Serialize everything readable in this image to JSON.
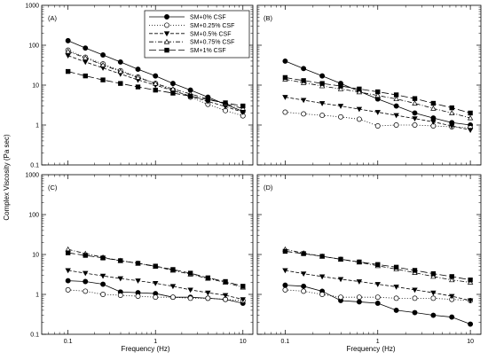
{
  "chart_data": {
    "type": "line",
    "xlabel": "Frequency (Hz)",
    "ylabel": "Complex Viscosity (Pa sec)",
    "x_scale": "log",
    "y_scale": "log",
    "xlim": [
      0.05,
      13
    ],
    "ylim": [
      0.1,
      1000
    ],
    "x_ticks": [
      {
        "value": 0.1,
        "label": "0.1"
      },
      {
        "value": 1,
        "label": "1"
      },
      {
        "value": 10,
        "label": "10"
      }
    ],
    "y_ticks": [
      {
        "value": 0.1,
        "label": "0.1"
      },
      {
        "value": 1,
        "label": "1"
      },
      {
        "value": 10,
        "label": "10"
      },
      {
        "value": 100,
        "label": "100"
      },
      {
        "value": 1000,
        "label": "1000"
      }
    ],
    "x": [
      0.1,
      0.158,
      0.251,
      0.398,
      0.631,
      1.0,
      1.585,
      2.512,
      3.981,
      6.31,
      10.0
    ],
    "legend": {
      "placement": "top-right of panel A",
      "entries": [
        {
          "label": "SM+0% CSF",
          "marker": "filled-circle",
          "dash": "solid"
        },
        {
          "label": "SM+0.25% CSF",
          "marker": "open-circle",
          "dash": "dotted"
        },
        {
          "label": "SM+0.5% CSF",
          "marker": "filled-triangle-down",
          "dash": "dashed"
        },
        {
          "label": "SM+0.75% CSF",
          "marker": "open-triangle-up",
          "dash": "dash-dot"
        },
        {
          "label": "SM+1% CSF",
          "marker": "filled-square",
          "dash": "long-dash"
        }
      ]
    },
    "panels": [
      {
        "label": "(A)",
        "series": [
          {
            "name": "SM+0% CSF",
            "values": [
              130,
              85,
              57,
              38,
              25,
              17,
              11,
              7.5,
              5,
              3.3,
              2.2
            ]
          },
          {
            "name": "SM+0.25% CSF",
            "values": [
              75,
              50,
              34,
              23,
              16,
              11,
              7.5,
              5,
              3.3,
              2.3,
              1.7
            ]
          },
          {
            "name": "SM+0.5% CSF",
            "values": [
              55,
              38,
              27,
              19,
              13.5,
              10,
              7.3,
              5.3,
              3.9,
              2.9,
              2.1
            ]
          },
          {
            "name": "SM+0.75% CSF",
            "values": [
              70,
              48,
              32,
              22,
              15.5,
              11,
              8,
              6,
              4.5,
              3.4,
              2.6
            ]
          },
          {
            "name": "SM+1% CSF",
            "values": [
              22,
              17,
              13.5,
              11,
              9,
              7.5,
              6.3,
              5.3,
              4.3,
              3.6,
              3
            ]
          }
        ]
      },
      {
        "label": "(B)",
        "series": [
          {
            "name": "SM+0% CSF",
            "values": [
              40,
              26,
              17,
              11,
              7,
              4.5,
              3,
              2,
              1.5,
              1.15,
              1
            ]
          },
          {
            "name": "SM+0.25% CSF",
            "values": [
              2.1,
              1.9,
              1.75,
              1.6,
              1.4,
              0.95,
              1,
              1,
              0.95,
              0.9,
              0.85
            ]
          },
          {
            "name": "SM+0.5% CSF",
            "values": [
              5,
              4.2,
              3.5,
              3,
              2.5,
              2.1,
              1.75,
              1.45,
              1.2,
              0.95,
              0.75
            ]
          },
          {
            "name": "SM+0.75% CSF",
            "values": [
              14,
              11.5,
              9.5,
              8,
              6.7,
              5.5,
              4.5,
              3.5,
              2.6,
              2,
              1.5
            ]
          },
          {
            "name": "SM+1% CSF",
            "values": [
              15.5,
              13,
              11,
              9.5,
              8,
              6.8,
              5.7,
              4.6,
              3.5,
              2.7,
              2
            ]
          }
        ]
      },
      {
        "label": "(C)",
        "series": [
          {
            "name": "SM+0% CSF",
            "values": [
              2.2,
              2.1,
              1.8,
              1.15,
              1.1,
              1.05,
              0.85,
              0.85,
              0.8,
              0.75,
              0.6
            ]
          },
          {
            "name": "SM+0.25% CSF",
            "values": [
              1.3,
              1.2,
              1,
              0.95,
              0.9,
              0.85,
              0.85,
              0.8,
              0.8,
              0.75,
              0.7
            ]
          },
          {
            "name": "SM+0.5% CSF",
            "values": [
              4,
              3.4,
              2.9,
              2.5,
              2.2,
              1.9,
              1.6,
              1.3,
              1.1,
              0.95,
              0.75
            ]
          },
          {
            "name": "SM+0.75% CSF",
            "values": [
              13.5,
              10.5,
              8.5,
              7,
              6,
              5,
              4,
              3.2,
              2.5,
              2,
              1.5
            ]
          },
          {
            "name": "SM+1% CSF",
            "values": [
              11,
              9.5,
              8.2,
              7,
              6,
              5.1,
              4.2,
              3.4,
              2.6,
              2.1,
              1.6
            ]
          }
        ]
      },
      {
        "label": "(D)",
        "series": [
          {
            "name": "SM+0% CSF",
            "values": [
              1.7,
              1.6,
              1.2,
              0.7,
              0.65,
              0.6,
              0.4,
              0.35,
              0.3,
              0.27,
              0.18
            ]
          },
          {
            "name": "SM+0.25% CSF",
            "values": [
              1.3,
              1.2,
              1,
              0.85,
              0.85,
              0.85,
              0.8,
              0.8,
              0.8,
              0.75,
              0.7
            ]
          },
          {
            "name": "SM+0.5% CSF",
            "values": [
              4,
              3.3,
              2.8,
              2.4,
              2.1,
              1.8,
              1.55,
              1.3,
              1.1,
              0.9,
              0.7
            ]
          },
          {
            "name": "SM+0.75% CSF",
            "values": [
              13.5,
              10.8,
              9,
              7.6,
              6.4,
              5.2,
              4.3,
              3.5,
              2.8,
              2.3,
              2
            ]
          },
          {
            "name": "SM+1% CSF",
            "values": [
              12,
              10.5,
              9,
              7.6,
              6.5,
              5.6,
              4.8,
              4,
              3.3,
              2.8,
              2.3
            ]
          }
        ]
      }
    ]
  }
}
